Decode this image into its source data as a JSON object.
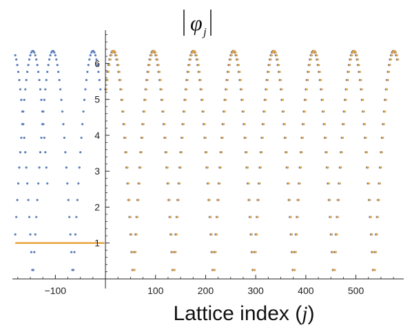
{
  "chart_data": {
    "type": "scatter",
    "title": "",
    "xlabel_prefix": "Lattice index (",
    "xlabel_var": "j",
    "xlabel_suffix": ")",
    "ylabel_symbol": "φ",
    "ylabel_subscript": "j",
    "xlim": [
      -183,
      590
    ],
    "ylim": [
      0,
      6.85
    ],
    "xticks": [
      -100,
      100,
      200,
      300,
      400,
      500
    ],
    "xtick_labels": [
      "−100",
      "100",
      "200",
      "300",
      "400",
      "500"
    ],
    "yticks": [
      1,
      2,
      3,
      4,
      5,
      6
    ],
    "ytick_labels": [
      "1",
      "2",
      "3",
      "4",
      "5",
      "6"
    ],
    "grid": false,
    "legend": "none",
    "series": [
      {
        "color": "#5b7fba",
        "style": "points",
        "segments": [
          {
            "x_start": -180,
            "x_end": -116,
            "step": 2,
            "amplitude": 6.35,
            "period": 80,
            "peak_at": -145
          },
          {
            "x_start": -180,
            "x_end": -10,
            "step": 2,
            "amplitude": 6.35,
            "period": 80,
            "peak_at": -105
          },
          {
            "x_start": 0,
            "x_end": 582,
            "step": 2,
            "amplitude": 6.35,
            "period": 80,
            "peak_at": 15
          }
        ]
      },
      {
        "color": "#e9a23b",
        "style": "points-and-line",
        "line": {
          "x_start": -180,
          "x_end": -2,
          "y": 1.0
        },
        "segments": [
          {
            "x_start": 2,
            "x_end": 585,
            "step": 2,
            "amplitude": 6.35,
            "period": 80,
            "peak_at": 17
          }
        ]
      }
    ]
  }
}
